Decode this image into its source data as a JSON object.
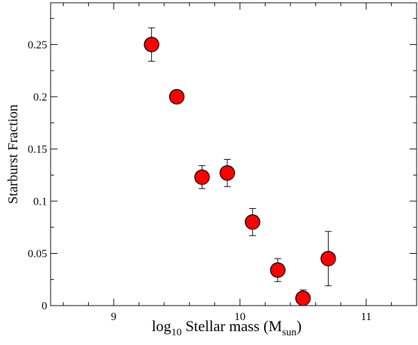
{
  "chart_data": {
    "type": "scatter",
    "title": "",
    "xlabel": {
      "main": "log",
      "main_sub": "10",
      "rest": " Stellar mass (M",
      "rest_sub": "sun",
      "close": ")"
    },
    "ylabel": "Starburst Fraction",
    "xlim": [
      8.5,
      11.4
    ],
    "ylim": [
      0,
      0.29
    ],
    "x_ticks": [
      {
        "value": 9,
        "label": "9"
      },
      {
        "value": 10,
        "label": "10"
      },
      {
        "value": 11,
        "label": "11"
      }
    ],
    "y_ticks": [
      {
        "value": 0,
        "label": "0"
      },
      {
        "value": 0.05,
        "label": "0.05"
      },
      {
        "value": 0.1,
        "label": "0.1"
      },
      {
        "value": 0.15,
        "label": "0.15"
      },
      {
        "value": 0.2,
        "label": "0.2"
      },
      {
        "value": 0.25,
        "label": "0.25"
      }
    ],
    "x_minor_step": 0.2,
    "y_minor_step": 0.025,
    "grid": false,
    "marker_color": "#ff0000",
    "marker_edge_color": "#000000",
    "points": [
      {
        "x": 9.3,
        "y": 0.25,
        "yerr_low": 0.234,
        "yerr_high": 0.266
      },
      {
        "x": 9.5,
        "y": 0.2,
        "yerr_low": 0.2,
        "yerr_high": 0.2
      },
      {
        "x": 9.7,
        "y": 0.123,
        "yerr_low": 0.112,
        "yerr_high": 0.134
      },
      {
        "x": 9.9,
        "y": 0.127,
        "yerr_low": 0.114,
        "yerr_high": 0.14
      },
      {
        "x": 10.1,
        "y": 0.08,
        "yerr_low": 0.067,
        "yerr_high": 0.093
      },
      {
        "x": 10.3,
        "y": 0.034,
        "yerr_low": 0.023,
        "yerr_high": 0.045
      },
      {
        "x": 10.5,
        "y": 0.007,
        "yerr_low": 0.0,
        "yerr_high": 0.015
      },
      {
        "x": 10.7,
        "y": 0.045,
        "yerr_low": 0.019,
        "yerr_high": 0.071
      }
    ]
  }
}
